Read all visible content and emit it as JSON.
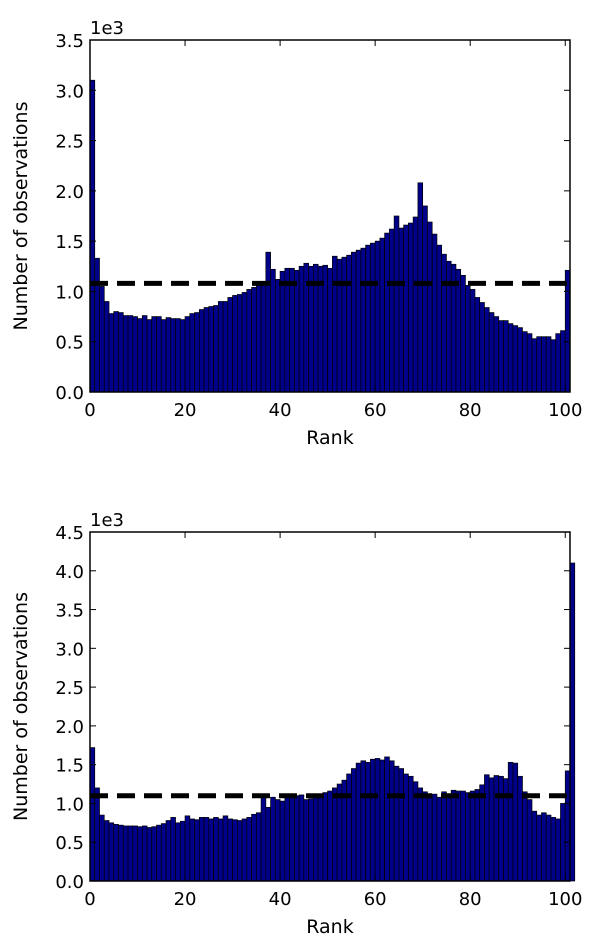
{
  "chart_data": [
    {
      "type": "bar",
      "xlabel": "Rank",
      "ylabel": "Number of observations",
      "y_multiplier": "1e3",
      "xlim": [
        0,
        101
      ],
      "ylim": [
        0,
        3.5
      ],
      "xticks": [
        0,
        20,
        40,
        60,
        80,
        100
      ],
      "xtick_labels": [
        "0",
        "20",
        "40",
        "60",
        "80",
        "100"
      ],
      "yticks": [
        0.0,
        0.5,
        1.0,
        1.5,
        2.0,
        2.5,
        3.0,
        3.5
      ],
      "ytick_labels": [
        "0.0",
        "0.5",
        "1.0",
        "1.5",
        "2.0",
        "2.5",
        "3.0",
        "3.5"
      ],
      "bar_color": "#00008b",
      "reference_line": 1.08,
      "values": [
        3.1,
        1.33,
        1.05,
        0.9,
        0.78,
        0.8,
        0.79,
        0.76,
        0.76,
        0.75,
        0.73,
        0.76,
        0.72,
        0.75,
        0.75,
        0.72,
        0.74,
        0.73,
        0.73,
        0.72,
        0.75,
        0.78,
        0.79,
        0.82,
        0.84,
        0.85,
        0.86,
        0.9,
        0.9,
        0.94,
        0.96,
        0.97,
        0.99,
        1.02,
        1.04,
        1.07,
        1.08,
        1.39,
        1.22,
        1.12,
        1.2,
        1.23,
        1.23,
        1.21,
        1.25,
        1.28,
        1.25,
        1.27,
        1.25,
        1.26,
        1.23,
        1.35,
        1.32,
        1.34,
        1.36,
        1.39,
        1.41,
        1.43,
        1.46,
        1.48,
        1.5,
        1.53,
        1.58,
        1.62,
        1.75,
        1.63,
        1.66,
        1.68,
        1.74,
        2.08,
        1.85,
        1.69,
        1.57,
        1.46,
        1.37,
        1.3,
        1.27,
        1.22,
        1.16,
        1.06,
        1.02,
        0.94,
        0.89,
        0.84,
        0.79,
        0.75,
        0.71,
        0.71,
        0.68,
        0.66,
        0.64,
        0.6,
        0.58,
        0.53,
        0.55,
        0.55,
        0.55,
        0.52,
        0.58,
        0.61,
        1.21
      ]
    },
    {
      "type": "bar",
      "xlabel": "Rank",
      "ylabel": "Number of observations",
      "y_multiplier": "1e3",
      "xlim": [
        0,
        101
      ],
      "ylim": [
        0,
        4.5
      ],
      "xticks": [
        0,
        20,
        40,
        60,
        80,
        100
      ],
      "xtick_labels": [
        "0",
        "20",
        "40",
        "60",
        "80",
        "100"
      ],
      "yticks": [
        0.0,
        0.5,
        1.0,
        1.5,
        2.0,
        2.5,
        3.0,
        3.5,
        4.0,
        4.5
      ],
      "ytick_labels": [
        "0.0",
        "0.5",
        "1.0",
        "1.5",
        "2.0",
        "2.5",
        "3.0",
        "3.5",
        "4.0",
        "4.5"
      ],
      "bar_color": "#00008b",
      "reference_line": 1.1,
      "values": [
        1.72,
        1.2,
        0.85,
        0.78,
        0.75,
        0.73,
        0.72,
        0.71,
        0.71,
        0.71,
        0.7,
        0.71,
        0.69,
        0.7,
        0.72,
        0.74,
        0.78,
        0.82,
        0.75,
        0.77,
        0.84,
        0.8,
        0.79,
        0.82,
        0.82,
        0.8,
        0.82,
        0.8,
        0.84,
        0.8,
        0.79,
        0.78,
        0.8,
        0.82,
        0.86,
        0.88,
        1.1,
        0.95,
        1.08,
        1.05,
        1.03,
        1.09,
        1.12,
        1.1,
        1.11,
        1.05,
        1.06,
        1.1,
        1.12,
        1.14,
        1.16,
        1.2,
        1.25,
        1.3,
        1.38,
        1.45,
        1.52,
        1.55,
        1.53,
        1.57,
        1.58,
        1.56,
        1.6,
        1.55,
        1.48,
        1.45,
        1.38,
        1.35,
        1.28,
        1.2,
        1.15,
        1.1,
        1.12,
        1.08,
        1.15,
        1.12,
        1.17,
        1.16,
        1.16,
        1.14,
        1.16,
        1.18,
        1.24,
        1.37,
        1.33,
        1.36,
        1.35,
        1.32,
        1.53,
        1.52,
        1.35,
        1.15,
        1.05,
        0.9,
        0.85,
        0.88,
        0.85,
        0.82,
        0.8,
        1.0,
        1.42,
        4.1
      ]
    }
  ]
}
